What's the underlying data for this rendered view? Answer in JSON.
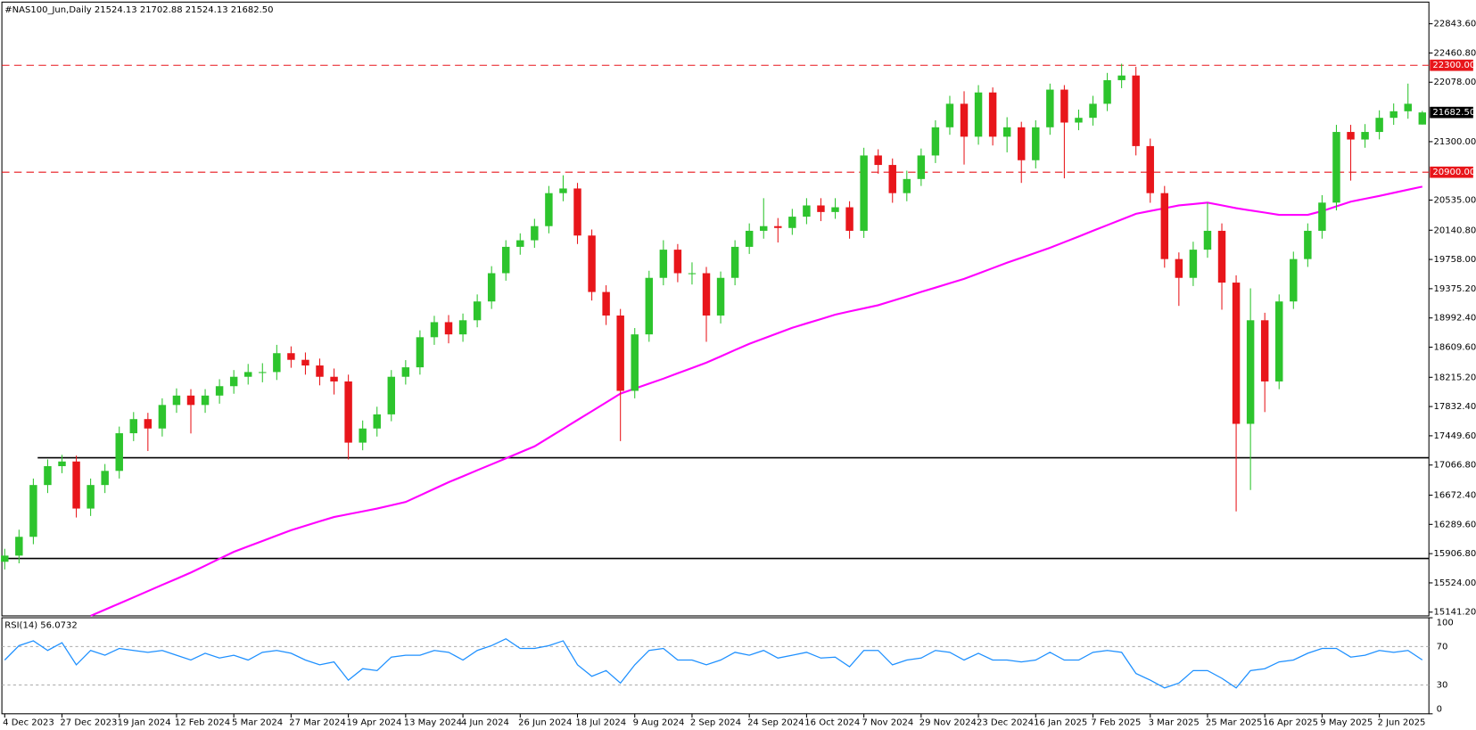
{
  "chart_data": [
    {
      "type": "candlestick",
      "title": "#NAS100_Jun,Daily  21524.13 21702.88 21524.13 21682.50",
      "categories": [
        "4 Dec 2023",
        null,
        null,
        null,
        "27 Dec 2023",
        null,
        null,
        null,
        "19 Jan 2024",
        null,
        null,
        null,
        "12 Feb 2024",
        null,
        null,
        null,
        "5 Mar 2024",
        null,
        null,
        null,
        "27 Mar 2024",
        null,
        null,
        null,
        "19 Apr 2024",
        null,
        null,
        null,
        "13 May 2024",
        null,
        null,
        null,
        "4 Jun 2024",
        null,
        null,
        null,
        "26 Jun 2024",
        null,
        null,
        null,
        "18 Jul 2024",
        null,
        null,
        null,
        "9 Aug 2024",
        null,
        null,
        null,
        "2 Sep 2024",
        null,
        null,
        null,
        "24 Sep 2024",
        null,
        null,
        null,
        "16 Oct 2024",
        null,
        null,
        null,
        "7 Nov 2024",
        null,
        null,
        null,
        "29 Nov 2024",
        null,
        null,
        null,
        "23 Dec 2024",
        null,
        null,
        null,
        "16 Jan 2025",
        null,
        null,
        null,
        "7 Feb 2025",
        null,
        null,
        null,
        "3 Mar 2025",
        null,
        null,
        null,
        "25 Mar 2025",
        null,
        null,
        null,
        "16 Apr 2025",
        null,
        null,
        null,
        "9 May 2025",
        null,
        null,
        null,
        "2 Jun 2025",
        null,
        null,
        null
      ],
      "open": [
        15800,
        15881,
        16127,
        16805,
        17052,
        17113,
        16497,
        16805,
        16990,
        17483,
        17668,
        17545,
        17853,
        17976,
        17853,
        17976,
        18099,
        18222,
        18284,
        18284,
        18531,
        18444,
        18370,
        18222,
        18161,
        17360,
        17545,
        17730,
        18222,
        18346,
        18740,
        18937,
        18777,
        18962,
        19208,
        19578,
        19923,
        20009,
        20194,
        20626,
        20687,
        20071,
        19332,
        19024,
        18038,
        18777,
        19517,
        19886,
        19578,
        19578,
        19024,
        19517,
        19923,
        20133,
        20194,
        20170,
        20318,
        20465,
        20379,
        20441,
        20133,
        21119,
        20995,
        20626,
        20811,
        21119,
        21488,
        21796,
        21365,
        21944,
        21365,
        21488,
        21057,
        21488,
        21981,
        21550,
        21612,
        21796,
        22105,
        22166,
        21242,
        20626,
        19763,
        19517,
        19886,
        20133,
        19455,
        17606,
        18962,
        18161,
        19208,
        19763,
        20133,
        20502,
        21427,
        21328,
        21427,
        21612,
        21698,
        21524.13
      ],
      "high": [
        15970,
        16220,
        16890,
        17140,
        17200,
        17190,
        16890,
        17080,
        17570,
        17760,
        17750,
        17940,
        18070,
        18060,
        18060,
        18190,
        18310,
        18390,
        18400,
        18640,
        18620,
        18540,
        18460,
        18330,
        18250,
        17650,
        17830,
        18310,
        18440,
        18830,
        19020,
        19030,
        19050,
        19300,
        19670,
        20010,
        20100,
        20290,
        20720,
        20860,
        20760,
        20150,
        19420,
        19110,
        18860,
        19610,
        20010,
        19960,
        19720,
        19660,
        19600,
        20010,
        20230,
        20560,
        20300,
        20420,
        20560,
        20560,
        20560,
        20520,
        21220,
        21200,
        21080,
        20920,
        21210,
        21580,
        21900,
        21960,
        22040,
        22010,
        21620,
        21560,
        21580,
        22060,
        22040,
        21720,
        21900,
        22200,
        22320,
        22280,
        21340,
        20720,
        19850,
        19990,
        20500,
        20230,
        19550,
        19380,
        19060,
        19300,
        19860,
        20230,
        20600,
        21520,
        21520,
        21530,
        21710,
        21800,
        22060,
        21702.88
      ],
      "low": [
        15700,
        15780,
        16030,
        16700,
        16960,
        16380,
        16400,
        16700,
        16890,
        17380,
        17250,
        17440,
        17750,
        17480,
        17750,
        17870,
        18000,
        18120,
        18150,
        18180,
        18340,
        18250,
        18110,
        17990,
        17140,
        17260,
        17440,
        17640,
        18120,
        18250,
        18640,
        18660,
        18680,
        18870,
        19110,
        19480,
        19820,
        19910,
        20100,
        20520,
        19960,
        19220,
        18900,
        17380,
        17940,
        18680,
        19420,
        19460,
        19430,
        18680,
        18920,
        19420,
        19830,
        20030,
        19980,
        20080,
        20220,
        20260,
        20290,
        20030,
        20040,
        20880,
        20500,
        20520,
        20720,
        21020,
        21390,
        21000,
        21260,
        21250,
        21160,
        20760,
        20950,
        21390,
        20820,
        21450,
        21510,
        21700,
        22000,
        21120,
        20500,
        19650,
        19150,
        19410,
        19780,
        19100,
        16460,
        16740,
        17760,
        18060,
        19110,
        19660,
        20030,
        20400,
        20790,
        21220,
        21330,
        21520,
        21600,
        21524.13
      ],
      "close": [
        15881,
        16127,
        16805,
        17052,
        17113,
        16497,
        16805,
        16990,
        17483,
        17668,
        17545,
        17853,
        17976,
        17853,
        17976,
        18099,
        18222,
        18284,
        18284,
        18531,
        18444,
        18370,
        18222,
        18161,
        17360,
        17545,
        17730,
        18222,
        18346,
        18740,
        18937,
        18777,
        18962,
        19208,
        19578,
        19923,
        20009,
        20194,
        20626,
        20687,
        20071,
        19332,
        19024,
        18038,
        18777,
        19517,
        19886,
        19578,
        19578,
        19024,
        19517,
        19923,
        20133,
        20194,
        20170,
        20318,
        20465,
        20379,
        20441,
        20133,
        21119,
        20995,
        20626,
        20811,
        21119,
        21488,
        21796,
        21365,
        21944,
        21365,
        21488,
        21057,
        21488,
        21981,
        21550,
        21612,
        21796,
        22105,
        22166,
        21242,
        20626,
        19763,
        19517,
        19886,
        20133,
        19455,
        17606,
        18962,
        18161,
        19208,
        19763,
        20133,
        20502,
        21427,
        21328,
        21427,
        21612,
        21698,
        21796,
        21682.5
      ],
      "up_color": "#2dc42d",
      "down_color": "#e8161b",
      "ma": {
        "color": "#ff00ff",
        "values": [
          null,
          null,
          null,
          null,
          null,
          null,
          15092,
          15173,
          15254,
          15335,
          15416,
          15497,
          15578,
          15659,
          15749,
          15840,
          15930,
          16001,
          16072,
          16143,
          16214,
          16271,
          16329,
          16386,
          16423,
          16460,
          16497,
          16540,
          16583,
          16669,
          16756,
          16842,
          16920,
          16998,
          17076,
          17154,
          17233,
          17311,
          17426,
          17541,
          17656,
          17771,
          17886,
          18001,
          18067,
          18132,
          18198,
          18268,
          18337,
          18407,
          18489,
          18572,
          18654,
          18724,
          18793,
          18863,
          18921,
          18978,
          19036,
          19077,
          19118,
          19159,
          19217,
          19274,
          19332,
          19389,
          19447,
          19504,
          19574,
          19644,
          19714,
          19780,
          19845,
          19911,
          19985,
          20059,
          20133,
          20207,
          20281,
          20355,
          20392,
          20428,
          20465,
          20484,
          20502,
          20466,
          20429,
          20400,
          20371,
          20342,
          20342,
          20342,
          20391,
          20453,
          20515,
          20552,
          20589,
          20630,
          20671,
          20712
        ]
      },
      "ylim": [
        15092,
        23127
      ],
      "yticks": [
        {
          "value": 22843.6,
          "label": "22843.60"
        },
        {
          "value": 22460.8,
          "label": "22460.80"
        },
        {
          "value": 22078,
          "label": "22078.00"
        },
        {
          "value": 21300,
          "label": "21300.00"
        },
        {
          "value": 20535,
          "label": "20535.00"
        },
        {
          "value": 20140.8,
          "label": "20140.80"
        },
        {
          "value": 19758,
          "label": "19758.00"
        },
        {
          "value": 19375.2,
          "label": "19375.20"
        },
        {
          "value": 18992.4,
          "label": "18992.40"
        },
        {
          "value": 18609.6,
          "label": "18609.60"
        },
        {
          "value": 18215.2,
          "label": "18215.20"
        },
        {
          "value": 17832.4,
          "label": "17832.40"
        },
        {
          "value": 17449.6,
          "label": "17449.60"
        },
        {
          "value": 17066.8,
          "label": "17066.80"
        },
        {
          "value": 16672.4,
          "label": "16672.40"
        },
        {
          "value": 16289.6,
          "label": "16289.60"
        },
        {
          "value": 15906.8,
          "label": "15906.80"
        },
        {
          "value": 15524,
          "label": "15524.00"
        },
        {
          "value": 15141.2,
          "label": "15141.20"
        }
      ],
      "levels": [
        {
          "value": 22300,
          "label": "22300.00",
          "color": "#e8161b",
          "style": "dashed"
        },
        {
          "value": 20900,
          "label": "20900.00",
          "color": "#e8161b",
          "style": "dashed"
        },
        {
          "value": 17162,
          "color": "#000000",
          "style": "solid"
        },
        {
          "value": 15843,
          "color": "#000000",
          "style": "solid"
        }
      ],
      "last_price": {
        "value": 21682.5,
        "label": "21682.50"
      }
    },
    {
      "type": "line",
      "title": "RSI(14) 56.0732",
      "ylim": [
        0,
        100
      ],
      "yticks": [
        100,
        70,
        30,
        0
      ],
      "grid": "dashed",
      "series": [
        {
          "color": "#1e90ff",
          "values": [
            56,
            71,
            76,
            66,
            74,
            51,
            66,
            61,
            68,
            66,
            64,
            66,
            61,
            56,
            63,
            58,
            61,
            56,
            64,
            66,
            63,
            56,
            51,
            54,
            35,
            47,
            45,
            59,
            61,
            61,
            66,
            64,
            56,
            66,
            71,
            78,
            68,
            68,
            71,
            76,
            51,
            39,
            45,
            32,
            51,
            66,
            68,
            56,
            56,
            51,
            56,
            64,
            61,
            66,
            58,
            61,
            64,
            58,
            59,
            49,
            66,
            66,
            51,
            56,
            58,
            66,
            64,
            56,
            63,
            56,
            56,
            54,
            56,
            64,
            56,
            56,
            64,
            66,
            64,
            42,
            35,
            27,
            32,
            45,
            45,
            37,
            27,
            45,
            47,
            54,
            56,
            63,
            68,
            68,
            59,
            61,
            66,
            64,
            66,
            56.0732
          ]
        }
      ]
    }
  ]
}
